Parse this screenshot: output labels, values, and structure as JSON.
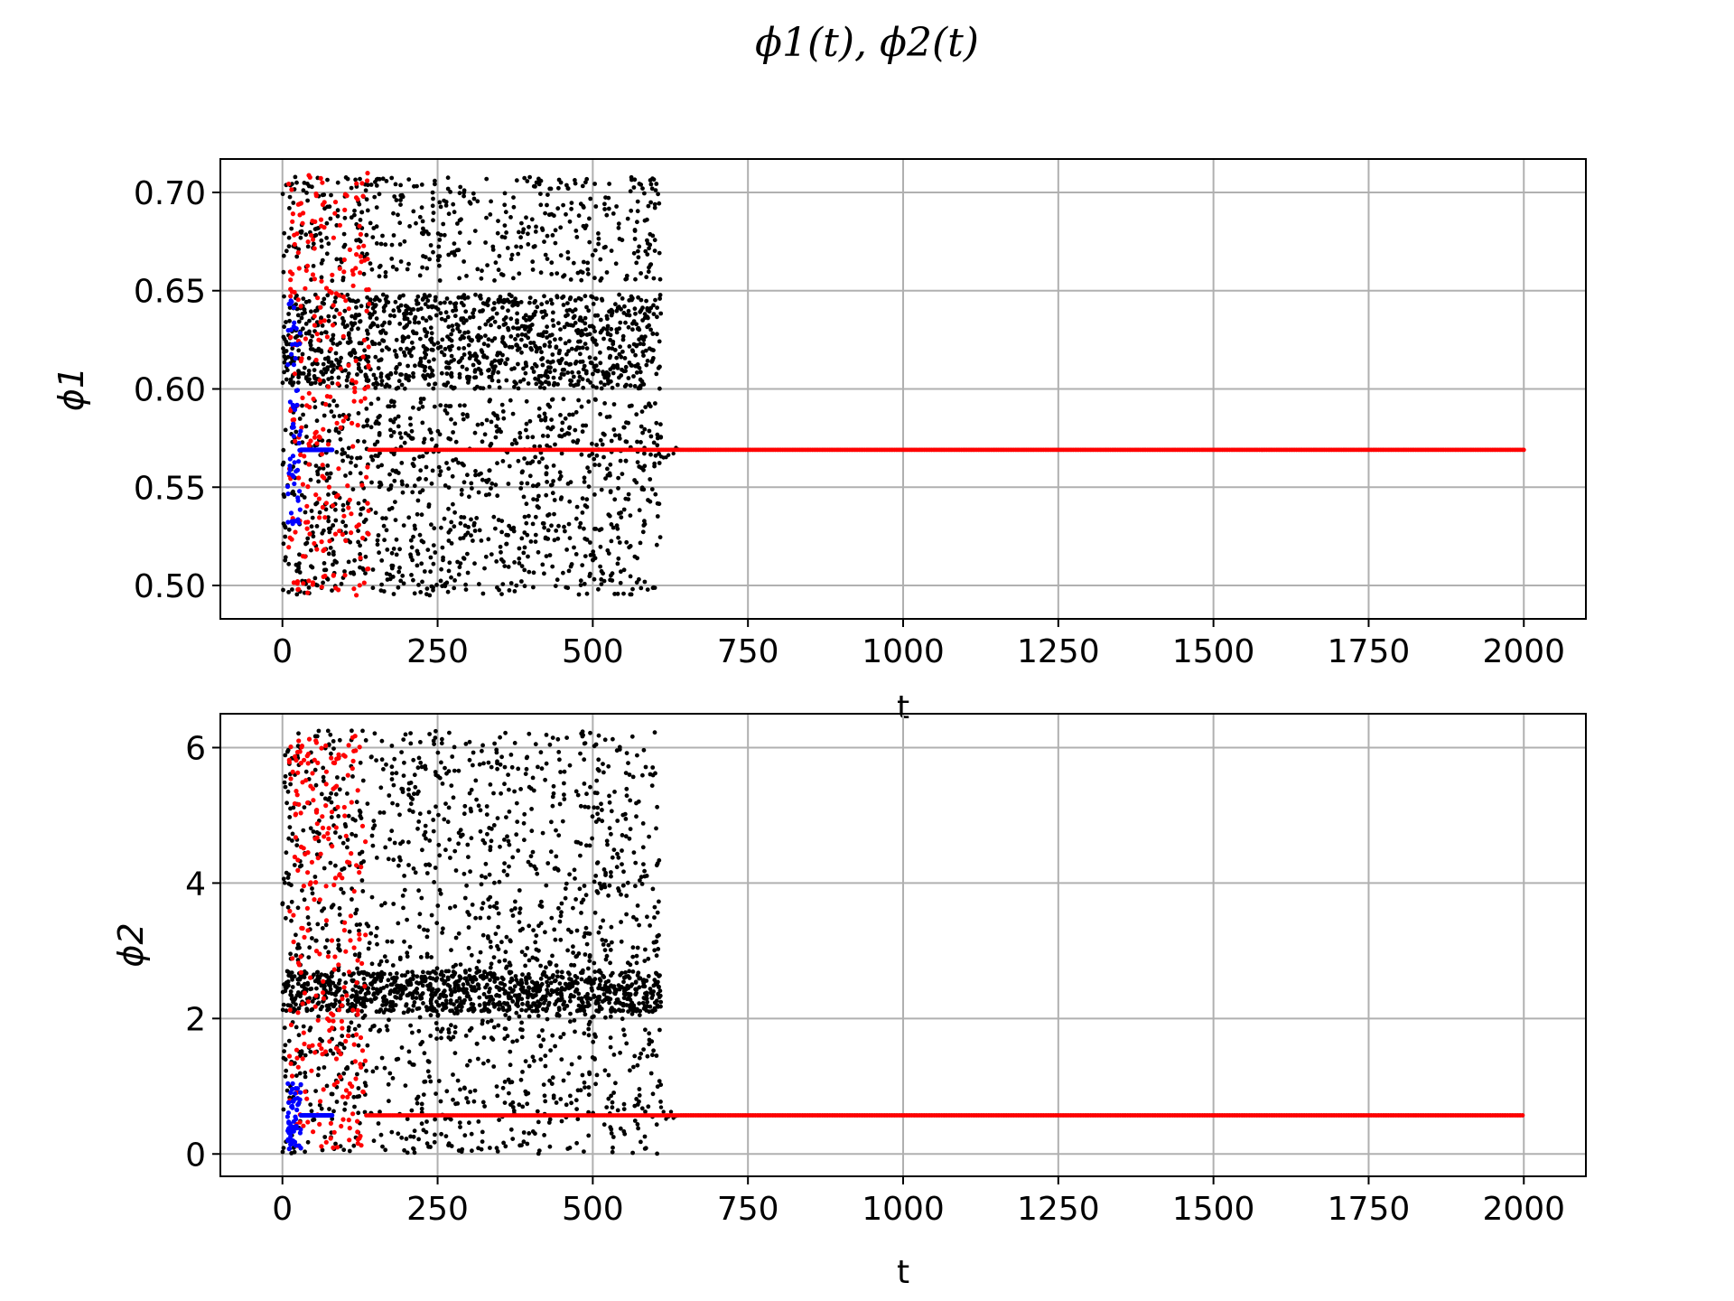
{
  "figure": {
    "title": "ϕ1(t), ϕ2(t)"
  },
  "colors": {
    "background": "#ffffff",
    "grid": "#b0b0b0",
    "black_series": "#000000",
    "red_series": "#ff0000",
    "blue_series": "#0000ff"
  },
  "chart_data": [
    {
      "type": "scatter",
      "title": "",
      "xlabel": "t",
      "ylabel": "ϕ1",
      "xlim": [
        -100,
        2100
      ],
      "ylim": [
        0.483,
        0.717
      ],
      "xticks": [
        0,
        250,
        500,
        750,
        1000,
        1250,
        1500,
        1750,
        2000
      ],
      "yticks": [
        0.5,
        0.55,
        0.6,
        0.65,
        0.7
      ],
      "ytick_labels": [
        "0.50",
        "0.55",
        "0.60",
        "0.65",
        "0.70"
      ],
      "grid": true,
      "legend": "none",
      "series": [
        {
          "color": "black",
          "description_points": {
            "chaotic_t_range": [
              0,
              610
            ],
            "upper_band": [
              0.6,
              0.648
            ],
            "top_band": [
              0.655,
              0.708
            ],
            "lower_band": [
              0.495,
              0.595
            ],
            "settled_value": 0.569,
            "settled_t_range": [
              610,
              2000
            ]
          }
        },
        {
          "color": "red",
          "chaotic_t_range": [
            10,
            140
          ],
          "settled_value": 0.569,
          "settled_t_range": [
            140,
            2000
          ]
        },
        {
          "color": "blue",
          "chaotic_t_range": [
            8,
            30
          ],
          "settled_value": 0.569,
          "settled_t_range": [
            30,
            80
          ]
        }
      ]
    },
    {
      "type": "scatter",
      "title": "",
      "xlabel": "t",
      "ylabel": "ϕ2",
      "xlim": [
        -100,
        2100
      ],
      "ylim": [
        -0.33,
        6.5
      ],
      "xticks": [
        0,
        250,
        500,
        750,
        1000,
        1250,
        1500,
        1750,
        2000
      ],
      "yticks": [
        0,
        2,
        4,
        6
      ],
      "ytick_labels": [
        "0",
        "2",
        "4",
        "6"
      ],
      "grid": true,
      "legend": "none",
      "series": [
        {
          "color": "black",
          "description_points": {
            "chaotic_t_range": [
              0,
              610
            ],
            "band": [
              0.0,
              6.25
            ],
            "dense_level": 2.6,
            "settled_value": 0.57,
            "settled_t_range": [
              610,
              2000
            ]
          }
        },
        {
          "color": "red",
          "chaotic_t_range": [
            10,
            135
          ],
          "settled_value": 0.57,
          "settled_t_range": [
            135,
            2000
          ]
        },
        {
          "color": "blue",
          "chaotic_t_range": [
            8,
            30
          ],
          "settled_value": 0.57,
          "settled_t_range": [
            30,
            80
          ]
        }
      ]
    }
  ]
}
